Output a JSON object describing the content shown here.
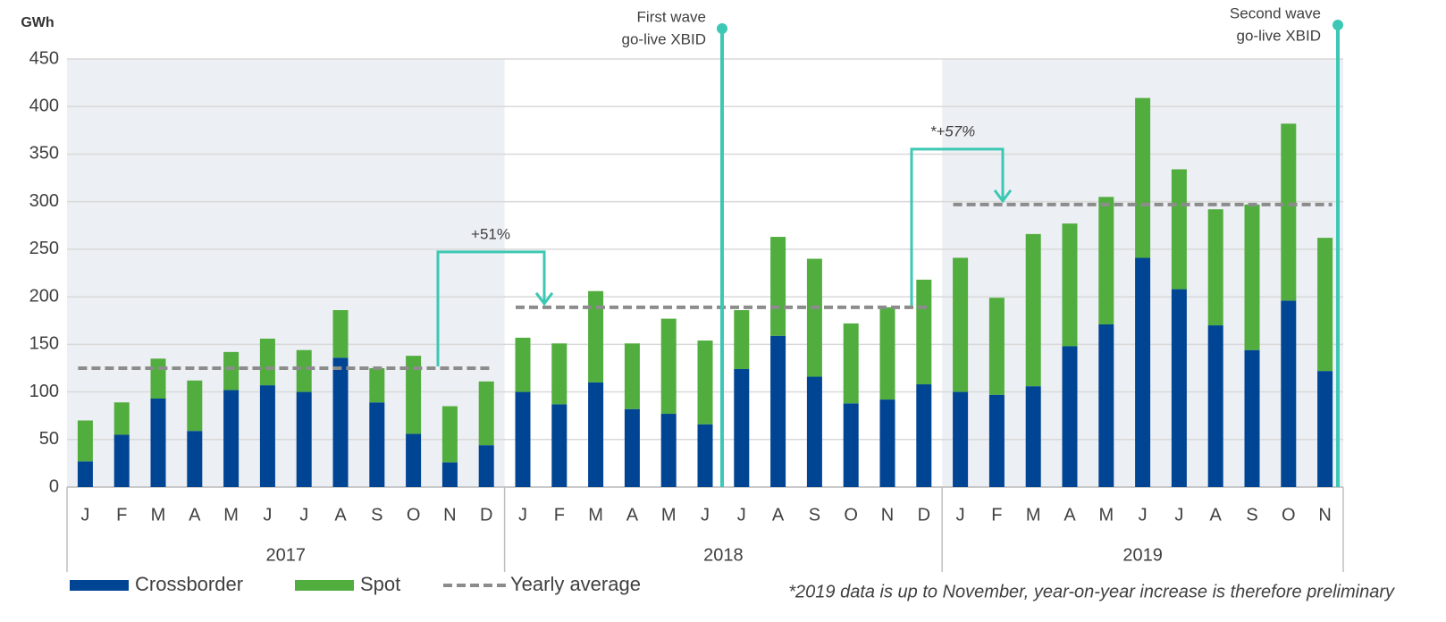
{
  "chart_data": {
    "type": "bar",
    "stacked": true,
    "y_label": "GWh",
    "groups": [
      {
        "label": "2017",
        "categories": [
          "J",
          "F",
          "M",
          "A",
          "M",
          "J",
          "J",
          "A",
          "S",
          "O",
          "N",
          "D"
        ]
      },
      {
        "label": "2018",
        "categories": [
          "J",
          "F",
          "M",
          "A",
          "M",
          "J",
          "J",
          "A",
          "S",
          "O",
          "N",
          "D"
        ]
      },
      {
        "label": "2019",
        "categories": [
          "J",
          "F",
          "M",
          "A",
          "M",
          "J",
          "J",
          "A",
          "S",
          "O",
          "N"
        ]
      }
    ],
    "series": [
      {
        "name": "Crossborder",
        "color": "#004494",
        "values": [
          27,
          55,
          93,
          59,
          102,
          107,
          100,
          136,
          89,
          56,
          26,
          44,
          100,
          87,
          110,
          82,
          77,
          66,
          124,
          159,
          116,
          88,
          92,
          108,
          100,
          97,
          106,
          148,
          171,
          241,
          208,
          170,
          144,
          196,
          122
        ]
      },
      {
        "name": "Spot",
        "color": "#52ad3f",
        "values": [
          43,
          34,
          42,
          53,
          40,
          49,
          44,
          50,
          36,
          82,
          59,
          67,
          57,
          64,
          96,
          69,
          100,
          88,
          62,
          104,
          124,
          84,
          97,
          110,
          141,
          102,
          160,
          129,
          134,
          168,
          126,
          122,
          153,
          186,
          140
        ]
      }
    ],
    "averages": {
      "name": "Yearly average",
      "color": "#8c8c8c",
      "values": [
        125,
        189,
        297
      ]
    },
    "increases": [
      "+51%",
      "*+57%"
    ],
    "events": [
      {
        "lines": [
          "First wave",
          "go-live  XBID"
        ]
      },
      {
        "lines": [
          "Second wave",
          "go-live  XBID"
        ]
      }
    ],
    "event_color": "#3cc8b4",
    "footnote": "*2019 data is up to November, year-on-year increase is therefore preliminary",
    "ylim": [
      0,
      450
    ],
    "yticks": [
      0,
      50,
      100,
      150,
      200,
      250,
      300,
      350,
      400,
      450
    ],
    "grid": true
  }
}
